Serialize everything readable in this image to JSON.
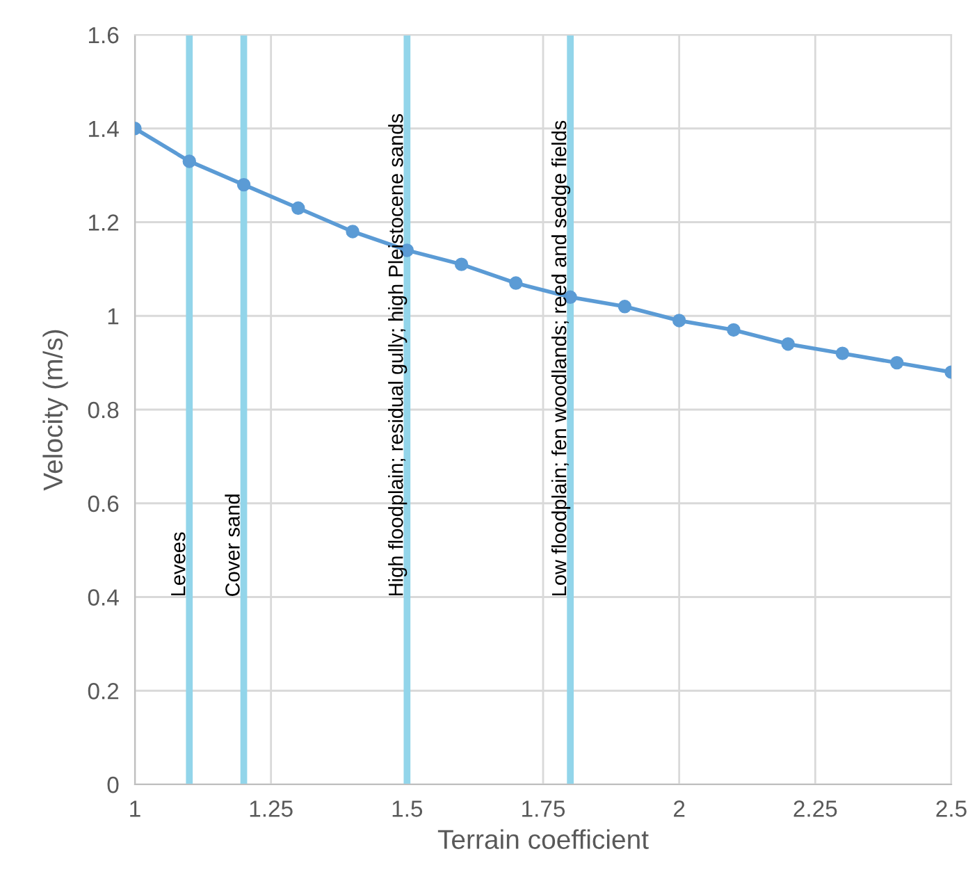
{
  "chart_data": {
    "type": "line",
    "xlabel": "Terrain coefficient",
    "ylabel": "Velocity (m/s)",
    "x": [
      1.0,
      1.1,
      1.2,
      1.3,
      1.4,
      1.5,
      1.6,
      1.7,
      1.8,
      1.9,
      2.0,
      2.1,
      2.2,
      2.3,
      2.4,
      2.5
    ],
    "series": [
      {
        "color": "#5b9bd5",
        "values": [
          1.4,
          1.33,
          1.28,
          1.23,
          1.18,
          1.14,
          1.11,
          1.07,
          1.04,
          1.02,
          0.99,
          0.97,
          0.94,
          0.92,
          0.9,
          0.88
        ]
      }
    ],
    "xlim": [
      1,
      2.5
    ],
    "xticks": [
      1,
      1.25,
      1.5,
      1.75,
      2,
      2.25,
      2.5
    ],
    "ylim": [
      0,
      1.6
    ],
    "yticks": [
      0,
      0.2,
      0.4,
      0.6,
      0.8,
      1,
      1.2,
      1.4,
      1.6
    ],
    "ref_lines": [
      {
        "axis": "x",
        "value": 1.1,
        "label": "Levees",
        "color": "#92d5ea"
      },
      {
        "axis": "x",
        "value": 1.2,
        "label": "Cover sand",
        "color": "#92d5ea"
      },
      {
        "axis": "x",
        "value": 1.5,
        "label": "High floodplain; residual gully; high Pleistocene sands",
        "color": "#92d5ea"
      },
      {
        "axis": "x",
        "value": 1.8,
        "label": "Low floodplain; fen woodlands; reed and sedge fields",
        "color": "#92d5ea"
      }
    ],
    "grid": true,
    "marker": "circle",
    "line_style": "solid"
  }
}
